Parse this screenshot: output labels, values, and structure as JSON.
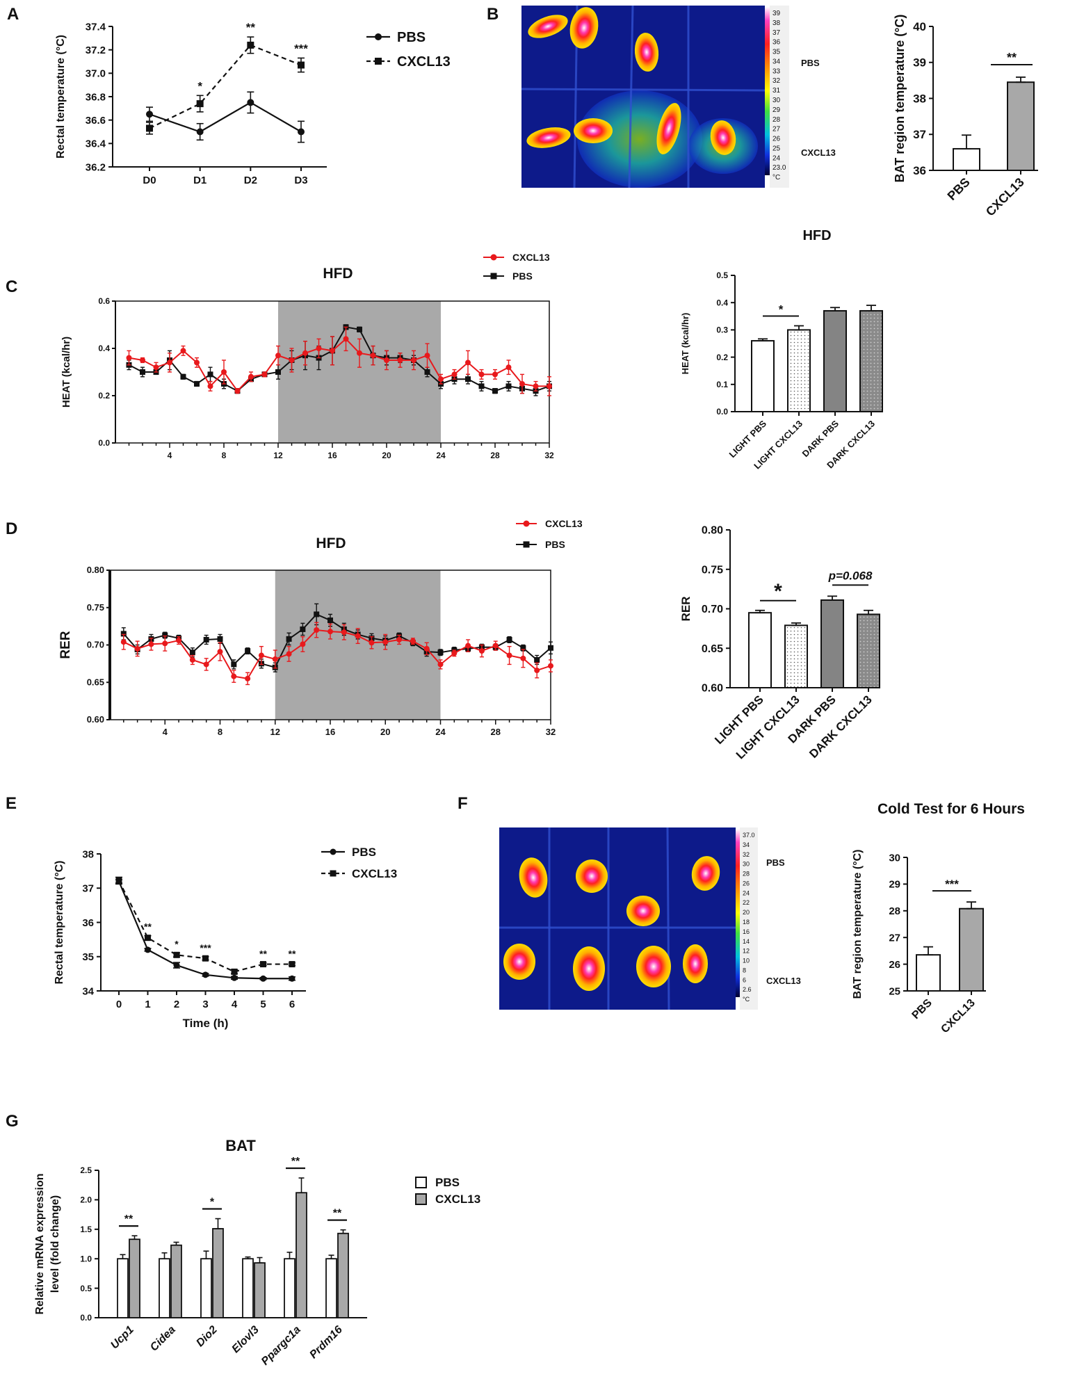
{
  "panel_labels": [
    "A",
    "B",
    "C",
    "D",
    "E",
    "F",
    "G"
  ],
  "thermal": {
    "b": {
      "scale_labels": [
        "39",
        "38",
        "37",
        "36",
        "35",
        "34",
        "33",
        "32",
        "31",
        "30",
        "29",
        "28",
        "27",
        "26",
        "25",
        "24",
        "23.0",
        "°C"
      ],
      "row_labels": [
        "PBS",
        "CXCL13"
      ]
    },
    "f": {
      "scale_labels": [
        "37.0",
        "34",
        "32",
        "30",
        "28",
        "26",
        "24",
        "22",
        "20",
        "18",
        "16",
        "14",
        "12",
        "10",
        "8",
        "6",
        "2.6",
        "°C"
      ],
      "row_labels": [
        "PBS",
        "CXCL13"
      ]
    }
  },
  "chart_data": [
    {
      "id": "A",
      "type": "line",
      "ylabel": "Rectal temperature (°C)",
      "xlabel": "",
      "categories": [
        "D0",
        "D1",
        "D2",
        "D3"
      ],
      "ylim": [
        36.2,
        37.4
      ],
      "yticks": [
        "36.2",
        "36.4",
        "36.6",
        "36.8",
        "37.0",
        "37.2",
        "37.4"
      ],
      "series": [
        {
          "name": "PBS",
          "values": [
            36.65,
            36.5,
            36.75,
            36.5
          ],
          "err": [
            0.06,
            0.07,
            0.09,
            0.09
          ],
          "style": "solid",
          "marker": "circle"
        },
        {
          "name": "CXCL13",
          "values": [
            36.53,
            36.74,
            37.24,
            37.07
          ],
          "err": [
            0.05,
            0.07,
            0.07,
            0.06
          ],
          "style": "dashed",
          "marker": "square"
        }
      ],
      "significance": [
        "",
        "*",
        "**",
        "***"
      ],
      "legend": [
        "PBS",
        "CXCL13"
      ]
    },
    {
      "id": "B",
      "type": "bar",
      "ylabel": "BAT region temperature (°C)",
      "categories": [
        "PBS",
        "CXCL13"
      ],
      "values": [
        36.6,
        38.45
      ],
      "err": [
        0.38,
        0.14
      ],
      "ylim": [
        36,
        40
      ],
      "yticks": [
        "36",
        "37",
        "38",
        "39",
        "40"
      ],
      "significance": "**"
    },
    {
      "id": "C_line",
      "type": "line",
      "title": "HFD",
      "ylabel": "HEAT (kcal/hr)",
      "xticks": [
        "4",
        "8",
        "12",
        "16",
        "20",
        "24",
        "28",
        "32"
      ],
      "ylim": [
        0,
        0.6
      ],
      "yticks": [
        "0.0",
        "0.2",
        "0.4",
        "0.6"
      ],
      "dark_phase": [
        12,
        24
      ],
      "legend": [
        "CXCL13",
        "PBS"
      ],
      "series": [
        {
          "name": "CXCL13",
          "color": "#e8191c",
          "x": [
            1,
            2,
            3,
            4,
            5,
            6,
            7,
            8,
            9,
            10,
            11,
            12,
            13,
            14,
            15,
            16,
            17,
            18,
            19,
            20,
            21,
            22,
            23,
            24,
            25,
            26,
            27,
            28,
            29,
            30,
            31,
            32
          ],
          "values": [
            0.36,
            0.35,
            0.32,
            0.34,
            0.39,
            0.34,
            0.24,
            0.3,
            0.22,
            0.28,
            0.29,
            0.37,
            0.35,
            0.38,
            0.4,
            0.39,
            0.44,
            0.38,
            0.37,
            0.35,
            0.35,
            0.35,
            0.37,
            0.27,
            0.29,
            0.34,
            0.29,
            0.29,
            0.32,
            0.25,
            0.24,
            0.24
          ],
          "err": [
            0.03,
            0.01,
            0.02,
            0.04,
            0.02,
            0.02,
            0.02,
            0.05,
            0.01,
            0.02,
            0.01,
            0.04,
            0.05,
            0.05,
            0.04,
            0.06,
            0.05,
            0.06,
            0.04,
            0.04,
            0.03,
            0.04,
            0.05,
            0.02,
            0.02,
            0.05,
            0.02,
            0.02,
            0.03,
            0.04,
            0.02,
            0.04
          ]
        },
        {
          "name": "PBS",
          "color": "#111111",
          "x": [
            1,
            2,
            3,
            4,
            5,
            6,
            7,
            8,
            9,
            10,
            11,
            12,
            13,
            14,
            15,
            16,
            17,
            18,
            19,
            20,
            21,
            22,
            23,
            24,
            25,
            26,
            27,
            28,
            29,
            30,
            31,
            32
          ],
          "values": [
            0.33,
            0.3,
            0.3,
            0.35,
            0.28,
            0.25,
            0.29,
            0.25,
            0.22,
            0.27,
            0.29,
            0.3,
            0.35,
            0.37,
            0.36,
            0.39,
            0.49,
            0.48,
            0.37,
            0.36,
            0.36,
            0.35,
            0.3,
            0.25,
            0.27,
            0.27,
            0.24,
            0.22,
            0.24,
            0.23,
            0.22,
            0.24
          ],
          "err": [
            0.02,
            0.02,
            0.01,
            0.04,
            0.01,
            0.01,
            0.03,
            0.02,
            0.01,
            0.01,
            0.01,
            0.03,
            0.04,
            0.06,
            0.05,
            0.06,
            0.01,
            0.01,
            0.04,
            0.03,
            0.02,
            0.02,
            0.02,
            0.02,
            0.02,
            0.02,
            0.02,
            0.01,
            0.02,
            0.02,
            0.02,
            0.02
          ]
        }
      ]
    },
    {
      "id": "C_bar",
      "type": "bar",
      "title": "HFD",
      "ylabel": "HEAT (kcal/hr)",
      "categories": [
        "LIGHT PBS",
        "LIGHT CXCL13",
        "DARK PBS",
        "DARK CXCL13"
      ],
      "values": [
        0.26,
        0.3,
        0.37,
        0.37
      ],
      "err": [
        0.007,
        0.015,
        0.012,
        0.02
      ],
      "ylim": [
        0,
        0.5
      ],
      "yticks": [
        "0.0",
        "0.1",
        "0.2",
        "0.3",
        "0.4",
        "0.5"
      ],
      "significance": "*"
    },
    {
      "id": "D_line",
      "type": "line",
      "title": "HFD",
      "ylabel": "RER",
      "xticks": [
        "4",
        "8",
        "12",
        "16",
        "20",
        "24",
        "28",
        "32"
      ],
      "ylim": [
        0.6,
        0.8
      ],
      "yticks": [
        "0.60",
        "0.65",
        "0.70",
        "0.75",
        "0.80"
      ],
      "dark_phase": [
        12,
        24
      ],
      "legend": [
        "CXCL13",
        "PBS"
      ],
      "series": [
        {
          "name": "CXCL13",
          "color": "#e8191c",
          "x": [
            1,
            2,
            3,
            4,
            5,
            6,
            7,
            8,
            9,
            10,
            11,
            12,
            13,
            14,
            15,
            16,
            17,
            18,
            19,
            20,
            21,
            22,
            23,
            24,
            25,
            26,
            27,
            28,
            29,
            30,
            31,
            32
          ],
          "values": [
            0.704,
            0.695,
            0.701,
            0.702,
            0.706,
            0.68,
            0.674,
            0.691,
            0.658,
            0.655,
            0.686,
            0.681,
            0.688,
            0.701,
            0.72,
            0.718,
            0.717,
            0.712,
            0.703,
            0.704,
            0.707,
            0.705,
            0.695,
            0.674,
            0.689,
            0.699,
            0.692,
            0.699,
            0.686,
            0.682,
            0.666,
            0.672
          ],
          "err": [
            0.01,
            0.01,
            0.008,
            0.01,
            0.005,
            0.006,
            0.008,
            0.012,
            0.008,
            0.008,
            0.012,
            0.012,
            0.01,
            0.01,
            0.01,
            0.01,
            0.01,
            0.01,
            0.008,
            0.01,
            0.006,
            0.004,
            0.008,
            0.006,
            0.004,
            0.008,
            0.008,
            0.006,
            0.012,
            0.012,
            0.01,
            0.008
          ]
        },
        {
          "name": "PBS",
          "color": "#111111",
          "x": [
            1,
            2,
            3,
            4,
            5,
            6,
            7,
            8,
            9,
            10,
            11,
            12,
            13,
            14,
            15,
            16,
            17,
            18,
            19,
            20,
            21,
            22,
            23,
            24,
            25,
            26,
            27,
            28,
            29,
            30,
            31,
            32
          ],
          "values": [
            0.715,
            0.694,
            0.708,
            0.713,
            0.709,
            0.69,
            0.707,
            0.708,
            0.674,
            0.692,
            0.675,
            0.67,
            0.708,
            0.721,
            0.741,
            0.733,
            0.721,
            0.714,
            0.709,
            0.706,
            0.712,
            0.703,
            0.691,
            0.69,
            0.693,
            0.695,
            0.697,
            0.697,
            0.707,
            0.696,
            0.68,
            0.696
          ],
          "err": [
            0.008,
            0.006,
            0.006,
            0.004,
            0.004,
            0.006,
            0.006,
            0.006,
            0.006,
            0.004,
            0.006,
            0.006,
            0.008,
            0.008,
            0.014,
            0.008,
            0.008,
            0.006,
            0.006,
            0.006,
            0.004,
            0.004,
            0.006,
            0.004,
            0.004,
            0.004,
            0.004,
            0.004,
            0.004,
            0.004,
            0.006,
            0.008
          ]
        }
      ]
    },
    {
      "id": "D_bar",
      "type": "bar",
      "ylabel": "RER",
      "categories": [
        "LIGHT PBS",
        "LIGHT CXCL13",
        "DARK PBS",
        "DARK CXCL13"
      ],
      "values": [
        0.695,
        0.679,
        0.711,
        0.693
      ],
      "err": [
        0.003,
        0.003,
        0.005,
        0.005
      ],
      "ylim": [
        0.6,
        0.8
      ],
      "yticks": [
        "0.60",
        "0.65",
        "0.70",
        "0.75",
        "0.80"
      ],
      "significance": [
        "*",
        "p=0.068"
      ]
    },
    {
      "id": "E",
      "type": "line",
      "ylabel": "Rectal temperature (°C)",
      "xlabel": "Time (h)",
      "x": [
        0,
        1,
        2,
        3,
        4,
        5,
        6
      ],
      "ylim": [
        34,
        38
      ],
      "yticks": [
        "34",
        "35",
        "36",
        "37",
        "38"
      ],
      "series": [
        {
          "name": "PBS",
          "values": [
            37.2,
            35.2,
            34.75,
            34.47,
            34.38,
            34.36,
            34.36
          ],
          "err": [
            0.05,
            0.04,
            0.08,
            0.04,
            0.04,
            0.03,
            0.05
          ],
          "style": "solid",
          "marker": "circle"
        },
        {
          "name": "CXCL13",
          "values": [
            37.22,
            35.55,
            35.05,
            34.95,
            34.56,
            34.78,
            34.78
          ],
          "err": [
            0.1,
            0.06,
            0.06,
            0.05,
            0.06,
            0.04,
            0.04
          ],
          "style": "dashed",
          "marker": "square"
        }
      ],
      "significance": [
        "",
        "**",
        "*",
        "***",
        "",
        "**",
        "**"
      ],
      "legend": [
        "PBS",
        "CXCL13"
      ]
    },
    {
      "id": "F",
      "type": "bar",
      "title": "Cold Test for 6 Hours",
      "ylabel": "BAT region temperature (°C)",
      "categories": [
        "PBS",
        "CXCL13"
      ],
      "values": [
        26.35,
        28.08
      ],
      "err": [
        0.3,
        0.25
      ],
      "ylim": [
        25,
        30
      ],
      "yticks": [
        "25",
        "26",
        "27",
        "28",
        "29",
        "30"
      ],
      "significance": "***"
    },
    {
      "id": "G",
      "type": "bar",
      "title": "BAT",
      "ylabel": "Relative mRNA expression level (fold change)",
      "categories": [
        "Ucp1",
        "Cidea",
        "Dio2",
        "Elovl3",
        "Ppargc1a",
        "Prdm16"
      ],
      "series": [
        {
          "name": "PBS",
          "values": [
            1.0,
            1.0,
            1.0,
            1.0,
            1.0,
            1.0
          ],
          "err": [
            0.07,
            0.1,
            0.13,
            0.03,
            0.11,
            0.06
          ]
        },
        {
          "name": "CXCL13",
          "values": [
            1.33,
            1.23,
            1.51,
            0.93,
            2.12,
            1.43
          ],
          "err": [
            0.06,
            0.05,
            0.17,
            0.09,
            0.25,
            0.06
          ]
        }
      ],
      "ylim": [
        0,
        2.5
      ],
      "yticks": [
        "0.0",
        "0.5",
        "1.0",
        "1.5",
        "2.0",
        "2.5"
      ],
      "significance": [
        "**",
        "",
        "*",
        "",
        "**",
        "**"
      ],
      "legend": [
        "PBS",
        "CXCL13"
      ]
    }
  ]
}
